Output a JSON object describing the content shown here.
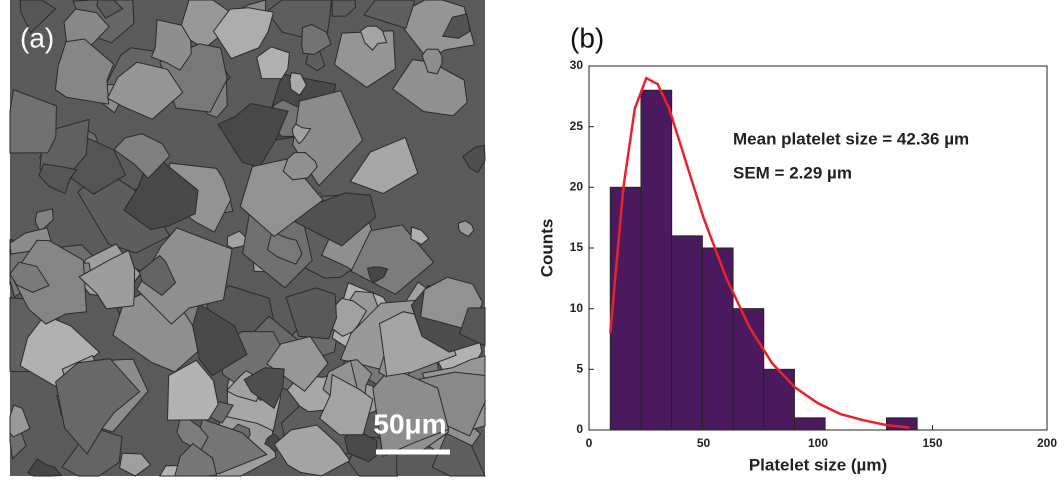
{
  "image_panel": {
    "label": "(a)",
    "scale_bar": "50μm"
  },
  "chart_data": {
    "type": "histogram",
    "panel_label": "(b)",
    "xlabel": "Platelet size (µm)",
    "ylabel": "Counts",
    "annotations": [
      "Mean platelet size = 42.36 µm",
      "SEM = 2.29 µm"
    ],
    "bins": [
      9.3,
      22.7,
      36.1,
      49.5,
      62.9,
      76.3,
      89.7,
      103.1,
      116.5,
      129.9,
      143.3
    ],
    "counts": [
      20,
      28,
      16,
      15,
      10,
      5,
      1,
      0,
      0,
      1
    ],
    "color": "#4b1a5e",
    "curve": {
      "color": "#e8222a",
      "x": [
        9.3,
        15,
        20,
        25,
        30,
        35,
        40,
        50,
        60,
        70,
        80,
        90,
        100,
        110,
        120,
        130,
        140
      ],
      "values": [
        8,
        20,
        26.5,
        29,
        28.5,
        26.5,
        23.5,
        17.5,
        12.5,
        8.5,
        5.5,
        3.5,
        2.2,
        1.3,
        0.8,
        0.4,
        0.2
      ]
    },
    "xlim": [
      0,
      200
    ],
    "xticks": [
      0,
      50,
      100,
      150,
      200
    ],
    "ylim": [
      0,
      30
    ],
    "yticks": [
      0,
      5,
      10,
      15,
      20,
      25,
      30
    ]
  }
}
